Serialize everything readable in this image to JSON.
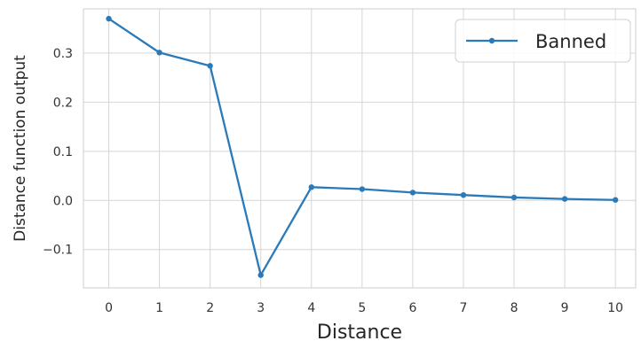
{
  "chart_data": {
    "type": "line",
    "xlabel": "Distance",
    "ylabel": "Distance function output",
    "x": [
      0,
      1,
      2,
      3,
      4,
      5,
      6,
      7,
      8,
      9,
      10
    ],
    "x_ticks": [
      "0",
      "1",
      "2",
      "3",
      "4",
      "5",
      "6",
      "7",
      "8",
      "9",
      "10"
    ],
    "y_ticks": [
      {
        "value": -0.1,
        "label": "−0.1"
      },
      {
        "value": 0.0,
        "label": "0.0"
      },
      {
        "value": 0.1,
        "label": "0.1"
      },
      {
        "value": 0.2,
        "label": "0.2"
      },
      {
        "value": 0.3,
        "label": "0.3"
      }
    ],
    "xlim": [
      -0.5,
      10.4
    ],
    "ylim": [
      -0.178,
      0.39
    ],
    "grid": true,
    "legend_position": "top-right",
    "series": [
      {
        "name": "Banned",
        "color": "#2a7ab9",
        "marker": "circle",
        "values": [
          0.37,
          0.301,
          0.274,
          -0.152,
          0.027,
          0.023,
          0.016,
          0.011,
          0.006,
          0.003,
          0.001
        ]
      }
    ]
  }
}
